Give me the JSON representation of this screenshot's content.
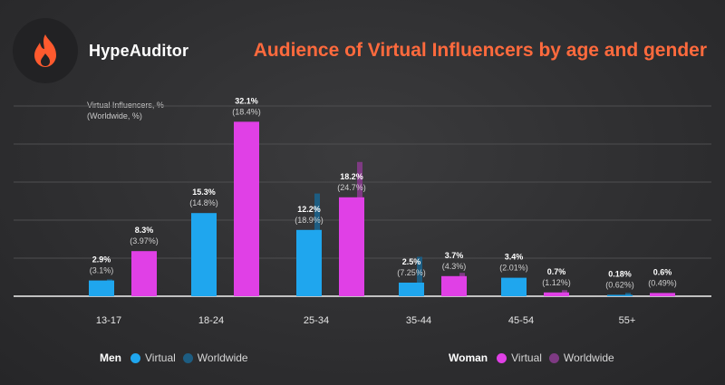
{
  "brand": {
    "name": "HypeAuditor",
    "icon": "flame-icon",
    "accent": "#ff5a2e"
  },
  "title": "Audience of Virtual Influencers by age and gender",
  "ylabel_line1": "Virtual Influencers, %",
  "ylabel_line2": "(Worldwide, %)",
  "legend": {
    "men_label": "Men",
    "women_label": "Woman",
    "virtual_label": "Virtual",
    "worldwide_label": "Worldwide"
  },
  "colors": {
    "men_virtual": "#1fa6ee",
    "men_worldwide": "#1d5d82",
    "women_virtual": "#e040e6",
    "women_worldwide": "#7e3a83",
    "title": "#ff6a3d"
  },
  "chart_data": {
    "type": "bar",
    "categories": [
      "13-17",
      "18-24",
      "25-34",
      "35-44",
      "45-54",
      "55+"
    ],
    "series": [
      {
        "name": "Men Virtual",
        "values": [
          2.9,
          15.3,
          12.2,
          2.5,
          3.4,
          0.18
        ],
        "labels": [
          "2.9%",
          "15.3%",
          "12.2%",
          "2.5%",
          "3.4%",
          "0.18%"
        ]
      },
      {
        "name": "Men Worldwide",
        "values": [
          3.1,
          14.8,
          18.9,
          7.25,
          2.01,
          0.62
        ],
        "labels": [
          "(3.1%)",
          "(14.8%)",
          "(18.9%)",
          "(7.25%)",
          "(2.01%)",
          "(0.62%)"
        ]
      },
      {
        "name": "Woman Virtual",
        "values": [
          8.3,
          32.1,
          18.2,
          3.7,
          0.7,
          0.6
        ],
        "labels": [
          "8.3%",
          "32.1%",
          "18.2%",
          "3.7%",
          "0.7%",
          "0.6%"
        ]
      },
      {
        "name": "Woman Worldwide",
        "values": [
          3.97,
          18.4,
          24.7,
          4.3,
          1.12,
          0.49
        ],
        "labels": [
          "(3.97%)",
          "(18.4%)",
          "(24.7%)",
          "(4.3%)",
          "(1.12%)",
          "(0.49%)"
        ]
      }
    ],
    "ylim": [
      0,
      35
    ],
    "grid": true,
    "legend_position": "bottom"
  }
}
